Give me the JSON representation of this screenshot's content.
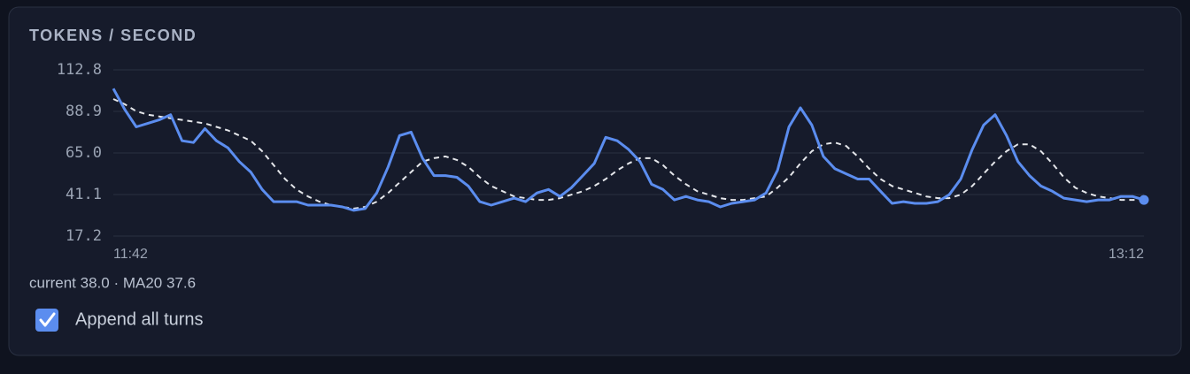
{
  "title": "TOKENS / SECOND",
  "chart_data": {
    "type": "line",
    "categories": [
      "11:42",
      null,
      null,
      null,
      null,
      null,
      null,
      null,
      null,
      null,
      null,
      null,
      null,
      null,
      null,
      null,
      null,
      null,
      null,
      null,
      null,
      null,
      null,
      null,
      null,
      null,
      null,
      null,
      null,
      null,
      null,
      null,
      null,
      null,
      null,
      null,
      null,
      null,
      null,
      null,
      null,
      null,
      null,
      null,
      null,
      null,
      null,
      null,
      null,
      null,
      null,
      null,
      null,
      null,
      null,
      null,
      null,
      null,
      null,
      null,
      null,
      null,
      null,
      null,
      null,
      null,
      null,
      null,
      null,
      null,
      null,
      null,
      null,
      null,
      null,
      null,
      null,
      null,
      null,
      null,
      null,
      null,
      null,
      null,
      null,
      null,
      null,
      null,
      null,
      null,
      "13:12"
    ],
    "series": [
      {
        "color": "#5b8def",
        "dashed": false,
        "end_marker": true,
        "values": [
          102,
          90,
          80,
          82,
          84,
          87,
          72,
          71,
          79,
          72,
          68,
          60,
          54,
          44,
          37,
          37,
          37,
          35,
          35,
          35,
          34,
          32,
          33,
          42,
          57,
          75,
          77,
          62,
          52,
          52,
          51,
          46,
          37,
          35,
          37,
          39,
          37,
          42,
          44,
          40,
          45,
          52,
          59,
          74,
          72,
          67,
          60,
          47,
          44,
          38,
          40,
          38,
          37,
          34,
          36,
          37,
          38,
          42,
          55,
          80,
          91,
          81,
          63,
          56,
          53,
          50,
          50,
          43,
          36,
          37,
          36,
          36,
          37,
          41,
          50,
          67,
          81,
          87,
          75,
          60,
          52,
          46,
          43,
          39,
          38,
          37,
          38,
          38,
          40,
          40,
          38
        ]
      },
      {
        "color": "#e4e6ea",
        "dashed": true,
        "end_marker": false,
        "values": [
          96,
          93,
          89,
          87,
          86,
          85,
          84,
          83,
          82,
          80,
          78,
          75,
          72,
          66,
          58,
          50,
          44,
          40,
          37,
          35,
          34,
          33,
          34,
          37,
          42,
          48,
          54,
          60,
          62,
          63,
          61,
          57,
          51,
          46,
          43,
          40,
          39,
          38,
          38,
          39,
          41,
          43,
          46,
          50,
          55,
          59,
          62,
          62,
          58,
          52,
          47,
          43,
          41,
          39,
          38,
          38,
          39,
          40,
          45,
          51,
          59,
          66,
          70,
          71,
          69,
          63,
          56,
          50,
          46,
          44,
          42,
          40,
          39,
          39,
          41,
          46,
          53,
          60,
          66,
          70,
          70,
          66,
          59,
          51,
          45,
          42,
          40,
          39,
          38,
          38,
          38
        ]
      }
    ],
    "ylim": [
      17.2,
      112.8
    ],
    "yticks": [
      112.8,
      88.9,
      {
        "value": 65,
        "label": "65.0"
      },
      41.1,
      17.2
    ],
    "grid": true
  },
  "status": "current 38.0 · MA20 37.6",
  "checkbox": {
    "label": "Append all turns",
    "checked": true
  }
}
